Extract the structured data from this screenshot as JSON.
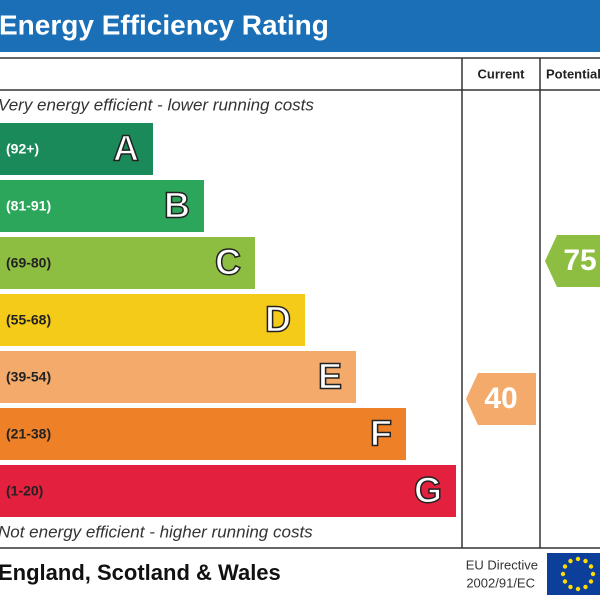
{
  "header": {
    "title": "Energy Efficiency Rating"
  },
  "columns": [
    "Current",
    "Potential"
  ],
  "top_note": "Very energy efficient - lower running costs",
  "bottom_note": "Not energy efficient - higher running costs",
  "bands": [
    {
      "range": "(92+)",
      "letter": "A",
      "color": "#1b8a5a"
    },
    {
      "range": "(81-91)",
      "letter": "B",
      "color": "#2ba65a"
    },
    {
      "range": "(69-80)",
      "letter": "C",
      "color": "#8dbe41"
    },
    {
      "range": "(55-68)",
      "letter": "D",
      "color": "#f4cb18"
    },
    {
      "range": "(39-54)",
      "letter": "E",
      "color": "#f3aa6a"
    },
    {
      "range": "(21-38)",
      "letter": "F",
      "color": "#ee8028"
    },
    {
      "range": "(1-20)",
      "letter": "G",
      "color": "#e3203d"
    }
  ],
  "current": {
    "value": 40,
    "color": "#f3aa6a"
  },
  "potential": {
    "value": 75,
    "color": "#8dbe41"
  },
  "footer": {
    "region": "England, Scotland & Wales",
    "directive": [
      "EU Directive",
      "2002/91/EC"
    ]
  }
}
